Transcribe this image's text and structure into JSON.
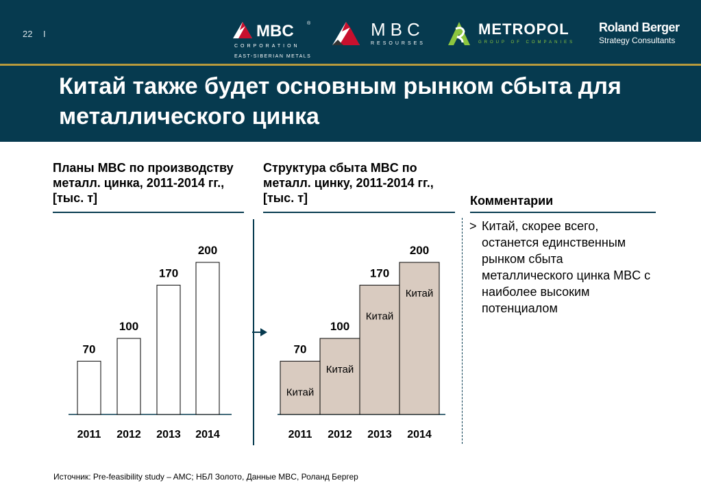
{
  "header": {
    "page_number": "22",
    "separator": "I",
    "title_lines": [
      "Китай также будет основным рынком сбыта для",
      "металлического цинка"
    ]
  },
  "logos": {
    "mbc_corporation": {
      "name": "MBC",
      "sub": "CORPORATION",
      "sub2": "EAST-SIBERIAN METALS",
      "registered": "®"
    },
    "mbc_resources": {
      "name": "MBC",
      "sub": "RESOURSES"
    },
    "metropol": {
      "name": "METROPOL",
      "sub": "GROUP OF COMPANIES"
    },
    "roland_berger": {
      "name": "Roland Berger",
      "sub": "Strategy Consultants"
    }
  },
  "left_panel": {
    "title_lines": [
      "Планы MBC по производству",
      "металл. цинка, 2011-2014 гг.,",
      "[тыс. т]"
    ]
  },
  "middle_panel": {
    "title_lines": [
      "Структура сбыта MBC по",
      "металл. цинку, 2011-2014 гг.,",
      "[тыс. т]"
    ]
  },
  "comments": {
    "title": "Комментарии",
    "marker": ">",
    "bullet_lines": [
      "Китай, скорее всего,",
      "останется единственным",
      "рынком сбыта",
      "металлического цинка MBC с",
      "наиболее высоким",
      "потенциалом"
    ]
  },
  "source": "Источник: Pre-feasibility study – AMC; НБЛ Золото, Данные MBC, Роланд Бергер",
  "colors": {
    "header_bg": "#063a4f",
    "gold": "#b89a3c",
    "bar_white": "#ffffff",
    "bar_beige": "#d9cbc0",
    "axis": "#063a4f"
  },
  "chart_data": [
    {
      "type": "bar",
      "categories": [
        "2011",
        "2012",
        "2013",
        "2014"
      ],
      "values": [
        70,
        100,
        170,
        200
      ],
      "ylim": [
        0,
        200
      ],
      "bar_color": "#ffffff"
    },
    {
      "type": "bar",
      "categories": [
        "2011",
        "2012",
        "2013",
        "2014"
      ],
      "values": [
        70,
        100,
        170,
        200
      ],
      "segment_label": "Китай",
      "ylim": [
        0,
        200
      ],
      "bar_color": "#d9cbc0",
      "bars_touching": true
    }
  ]
}
